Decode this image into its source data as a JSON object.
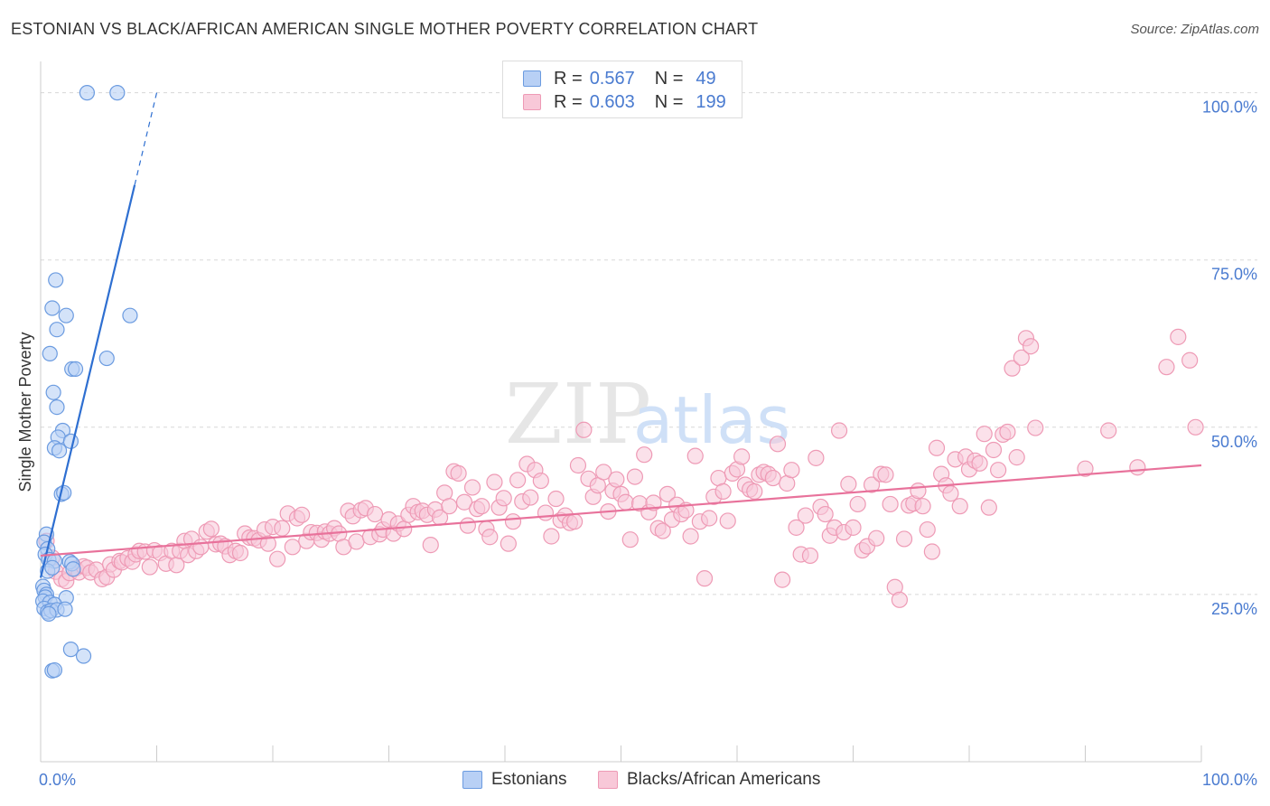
{
  "title": "ESTONIAN VS BLACK/AFRICAN AMERICAN SINGLE MOTHER POVERTY CORRELATION CHART",
  "source": "Source: ZipAtlas.com",
  "watermark": {
    "zip": "ZIP",
    "atlas": "atlas"
  },
  "legend": {
    "series1": {
      "r_label": "R =",
      "r_value": "0.567",
      "n_label": "N =",
      "n_value": "49"
    },
    "series2": {
      "r_label": "R =",
      "r_value": "0.603",
      "n_label": "N =",
      "n_value": "199"
    }
  },
  "bottom_legend": {
    "series1": "Estonians",
    "series2": "Blacks/African Americans"
  },
  "colors": {
    "blue_fill": "#b8d0f5",
    "blue_stroke": "#6b9be0",
    "blue_line": "#2e6fd1",
    "pink_fill": "#f8c8d8",
    "pink_stroke": "#ee9ab5",
    "pink_line": "#e8729b",
    "grid": "#d8d8d8",
    "tick_label": "#4a7bd0"
  },
  "chart_data": {
    "type": "scatter",
    "title": "ESTONIAN VS BLACK/AFRICAN AMERICAN SINGLE MOTHER POVERTY CORRELATION CHART",
    "xlabel": "",
    "ylabel": "Single Mother Poverty",
    "xlim": [
      0,
      100
    ],
    "ylim": [
      0,
      104
    ],
    "x_tick_labels": [
      "0.0%",
      "100.0%"
    ],
    "y_ticks": [
      25,
      50,
      75,
      100
    ],
    "y_tick_labels": [
      "25.0%",
      "50.0%",
      "75.0%",
      "100.0%"
    ],
    "series": [
      {
        "name": "Estonians",
        "r": 0.567,
        "n": 49,
        "trend": {
          "x": [
            0,
            8.1
          ],
          "y": [
            27.5,
            86.2
          ],
          "dashed_x": [
            8.1,
            10.0
          ],
          "dashed_y": [
            86.2,
            100.0
          ]
        },
        "points": [
          [
            4.0,
            100
          ],
          [
            6.6,
            100
          ],
          [
            1.3,
            72.0
          ],
          [
            1.0,
            67.8
          ],
          [
            2.2,
            66.7
          ],
          [
            7.7,
            66.7
          ],
          [
            1.4,
            64.6
          ],
          [
            0.8,
            61.0
          ],
          [
            5.7,
            60.3
          ],
          [
            2.7,
            58.7
          ],
          [
            3.0,
            58.7
          ],
          [
            1.1,
            55.2
          ],
          [
            1.4,
            53.0
          ],
          [
            1.9,
            49.5
          ],
          [
            1.5,
            48.5
          ],
          [
            2.6,
            47.9
          ],
          [
            1.2,
            46.9
          ],
          [
            1.6,
            46.5
          ],
          [
            1.8,
            40.0
          ],
          [
            2.0,
            40.2
          ],
          [
            0.5,
            34.0
          ],
          [
            0.3,
            32.8
          ],
          [
            0.6,
            31.8
          ],
          [
            0.4,
            31.0
          ],
          [
            0.7,
            30.2
          ],
          [
            1.2,
            30.0
          ],
          [
            2.5,
            29.9
          ],
          [
            2.7,
            29.6
          ],
          [
            0.6,
            28.5
          ],
          [
            1.0,
            29.0
          ],
          [
            2.8,
            28.8
          ],
          [
            0.2,
            26.2
          ],
          [
            0.3,
            25.6
          ],
          [
            0.5,
            25.0
          ],
          [
            0.4,
            24.6
          ],
          [
            2.2,
            24.5
          ],
          [
            0.2,
            24.0
          ],
          [
            0.8,
            23.8
          ],
          [
            1.2,
            23.5
          ],
          [
            0.3,
            22.9
          ],
          [
            0.6,
            22.4
          ],
          [
            0.9,
            22.6
          ],
          [
            1.4,
            22.7
          ],
          [
            2.1,
            22.8
          ],
          [
            0.7,
            22.1
          ],
          [
            2.6,
            16.8
          ],
          [
            3.7,
            15.8
          ],
          [
            1.0,
            13.6
          ],
          [
            1.2,
            13.7
          ]
        ]
      },
      {
        "name": "Blacks/African Americans",
        "r": 0.603,
        "n": 199,
        "trend": {
          "x": [
            0,
            100
          ],
          "y": [
            30.8,
            44.3
          ]
        },
        "points": [
          [
            0.5,
            33.0
          ],
          [
            1.0,
            30.5
          ],
          [
            1.3,
            28.4
          ],
          [
            1.8,
            27.3
          ],
          [
            2.2,
            27.0
          ],
          [
            2.5,
            28.2
          ],
          [
            3.0,
            28.9
          ],
          [
            3.3,
            28.3
          ],
          [
            3.7,
            29.2
          ],
          [
            4.0,
            29.0
          ],
          [
            4.3,
            28.3
          ],
          [
            4.8,
            28.7
          ],
          [
            5.3,
            27.3
          ],
          [
            5.7,
            27.6
          ],
          [
            6.0,
            29.5
          ],
          [
            6.3,
            28.7
          ],
          [
            6.8,
            30.0
          ],
          [
            7.0,
            29.8
          ],
          [
            7.5,
            30.4
          ],
          [
            7.9,
            29.9
          ],
          [
            8.2,
            31.0
          ],
          [
            8.5,
            31.5
          ],
          [
            9.0,
            31.4
          ],
          [
            9.4,
            29.1
          ],
          [
            9.8,
            31.6
          ],
          [
            10.3,
            31.2
          ],
          [
            10.8,
            29.6
          ],
          [
            11.3,
            31.5
          ],
          [
            11.7,
            29.4
          ],
          [
            12.0,
            31.5
          ],
          [
            12.4,
            33.0
          ],
          [
            12.7,
            30.9
          ],
          [
            13.0,
            33.3
          ],
          [
            13.4,
            31.5
          ],
          [
            13.8,
            32.1
          ],
          [
            14.3,
            34.4
          ],
          [
            14.7,
            34.8
          ],
          [
            15.1,
            32.5
          ],
          [
            15.5,
            32.6
          ],
          [
            15.9,
            32.2
          ],
          [
            16.3,
            30.9
          ],
          [
            16.8,
            31.5
          ],
          [
            17.2,
            31.2
          ],
          [
            17.6,
            34.1
          ],
          [
            18.0,
            33.5
          ],
          [
            18.4,
            33.4
          ],
          [
            18.8,
            33.1
          ],
          [
            19.3,
            34.7
          ],
          [
            19.6,
            32.6
          ],
          [
            20.0,
            35.1
          ],
          [
            20.4,
            30.3
          ],
          [
            20.8,
            34.9
          ],
          [
            21.3,
            37.1
          ],
          [
            21.7,
            32.1
          ],
          [
            22.1,
            36.4
          ],
          [
            22.5,
            36.9
          ],
          [
            22.9,
            33.0
          ],
          [
            23.3,
            34.3
          ],
          [
            23.8,
            34.2
          ],
          [
            24.2,
            33.2
          ],
          [
            24.5,
            34.4
          ],
          [
            24.9,
            34.1
          ],
          [
            25.3,
            34.9
          ],
          [
            25.7,
            34.1
          ],
          [
            26.1,
            32.1
          ],
          [
            26.5,
            37.5
          ],
          [
            26.9,
            36.7
          ],
          [
            27.2,
            32.9
          ],
          [
            27.6,
            37.6
          ],
          [
            28.0,
            37.9
          ],
          [
            28.4,
            33.6
          ],
          [
            28.8,
            37.0
          ],
          [
            29.2,
            34.0
          ],
          [
            29.5,
            34.7
          ],
          [
            30.0,
            36.2
          ],
          [
            30.4,
            34.1
          ],
          [
            30.8,
            35.6
          ],
          [
            31.3,
            34.8
          ],
          [
            31.7,
            36.9
          ],
          [
            32.1,
            38.2
          ],
          [
            32.5,
            37.3
          ],
          [
            32.9,
            37.5
          ],
          [
            33.3,
            36.9
          ],
          [
            33.6,
            32.4
          ],
          [
            34.0,
            37.7
          ],
          [
            34.4,
            36.5
          ],
          [
            34.8,
            40.2
          ],
          [
            35.2,
            38.2
          ],
          [
            35.6,
            43.4
          ],
          [
            36.0,
            43.1
          ],
          [
            36.5,
            38.8
          ],
          [
            36.8,
            35.3
          ],
          [
            37.2,
            41.0
          ],
          [
            37.6,
            37.8
          ],
          [
            38.0,
            38.2
          ],
          [
            38.4,
            34.8
          ],
          [
            38.7,
            33.6
          ],
          [
            39.1,
            41.8
          ],
          [
            39.5,
            38.0
          ],
          [
            39.9,
            39.4
          ],
          [
            40.3,
            32.6
          ],
          [
            40.7,
            35.9
          ],
          [
            41.1,
            42.1
          ],
          [
            41.5,
            38.9
          ],
          [
            41.9,
            44.5
          ],
          [
            42.2,
            39.5
          ],
          [
            42.6,
            43.6
          ],
          [
            43.1,
            42.0
          ],
          [
            43.5,
            37.2
          ],
          [
            44.0,
            33.7
          ],
          [
            44.4,
            39.3
          ],
          [
            44.8,
            36.1
          ],
          [
            45.2,
            36.8
          ],
          [
            45.6,
            35.7
          ],
          [
            46.0,
            35.9
          ],
          [
            46.3,
            44.3
          ],
          [
            46.8,
            49.6
          ],
          [
            47.2,
            42.3
          ],
          [
            47.6,
            39.6
          ],
          [
            48.0,
            41.3
          ],
          [
            48.5,
            43.3
          ],
          [
            48.9,
            37.4
          ],
          [
            49.3,
            40.5
          ],
          [
            49.6,
            42.2
          ],
          [
            50.0,
            40.0
          ],
          [
            50.4,
            38.8
          ],
          [
            50.8,
            33.2
          ],
          [
            51.2,
            42.6
          ],
          [
            51.6,
            38.6
          ],
          [
            52.0,
            45.9
          ],
          [
            52.4,
            37.3
          ],
          [
            52.8,
            38.7
          ],
          [
            53.2,
            34.9
          ],
          [
            53.6,
            34.5
          ],
          [
            54.0,
            40.0
          ],
          [
            54.4,
            36.2
          ],
          [
            54.8,
            38.4
          ],
          [
            55.2,
            37.0
          ],
          [
            55.6,
            37.6
          ],
          [
            56.0,
            33.7
          ],
          [
            56.4,
            45.7
          ],
          [
            56.8,
            35.9
          ],
          [
            57.2,
            27.4
          ],
          [
            57.6,
            36.4
          ],
          [
            58.0,
            39.6
          ],
          [
            58.4,
            42.4
          ],
          [
            58.8,
            40.4
          ],
          [
            59.2,
            36.0
          ],
          [
            59.6,
            43.1
          ],
          [
            60.0,
            43.7
          ],
          [
            60.4,
            45.6
          ],
          [
            60.7,
            41.4
          ],
          [
            61.1,
            40.7
          ],
          [
            61.5,
            40.4
          ],
          [
            61.9,
            42.9
          ],
          [
            62.3,
            43.3
          ],
          [
            62.7,
            43.0
          ],
          [
            63.1,
            42.4
          ],
          [
            63.5,
            47.5
          ],
          [
            63.9,
            27.2
          ],
          [
            64.3,
            41.6
          ],
          [
            64.7,
            43.6
          ],
          [
            65.1,
            35.0
          ],
          [
            65.5,
            31.0
          ],
          [
            65.9,
            36.8
          ],
          [
            66.3,
            30.8
          ],
          [
            66.8,
            45.4
          ],
          [
            67.2,
            38.1
          ],
          [
            67.6,
            37.0
          ],
          [
            68.0,
            33.8
          ],
          [
            68.4,
            35.0
          ],
          [
            68.8,
            49.5
          ],
          [
            69.2,
            34.3
          ],
          [
            69.6,
            41.5
          ],
          [
            70.0,
            35.0
          ],
          [
            70.4,
            38.5
          ],
          [
            70.8,
            31.6
          ],
          [
            71.2,
            32.2
          ],
          [
            71.6,
            41.4
          ],
          [
            72.0,
            33.4
          ],
          [
            72.4,
            43.0
          ],
          [
            72.8,
            42.9
          ],
          [
            73.2,
            38.5
          ],
          [
            73.6,
            26.1
          ],
          [
            74.0,
            24.2
          ],
          [
            74.4,
            33.3
          ],
          [
            74.8,
            38.3
          ],
          [
            75.2,
            38.6
          ],
          [
            75.6,
            40.5
          ],
          [
            76.0,
            38.2
          ],
          [
            76.4,
            34.7
          ],
          [
            76.8,
            31.4
          ],
          [
            77.2,
            46.9
          ],
          [
            77.6,
            43.0
          ],
          [
            78.0,
            41.3
          ],
          [
            78.4,
            40.1
          ],
          [
            78.8,
            45.2
          ],
          [
            79.2,
            38.2
          ],
          [
            79.7,
            45.6
          ],
          [
            80.0,
            43.7
          ],
          [
            80.5,
            45.0
          ],
          [
            80.9,
            44.6
          ],
          [
            81.3,
            49.0
          ],
          [
            81.7,
            38.0
          ],
          [
            82.1,
            46.6
          ],
          [
            82.5,
            43.6
          ],
          [
            82.9,
            48.9
          ],
          [
            83.3,
            49.3
          ],
          [
            83.7,
            58.8
          ],
          [
            84.1,
            45.5
          ],
          [
            84.5,
            60.4
          ],
          [
            84.9,
            63.3
          ],
          [
            85.3,
            62.1
          ],
          [
            85.7,
            49.9
          ],
          [
            90.0,
            43.8
          ],
          [
            92.0,
            49.5
          ],
          [
            94.5,
            44.0
          ],
          [
            97.0,
            59.0
          ],
          [
            98.0,
            63.5
          ],
          [
            99.0,
            60.0
          ],
          [
            99.5,
            50.0
          ]
        ]
      }
    ]
  }
}
